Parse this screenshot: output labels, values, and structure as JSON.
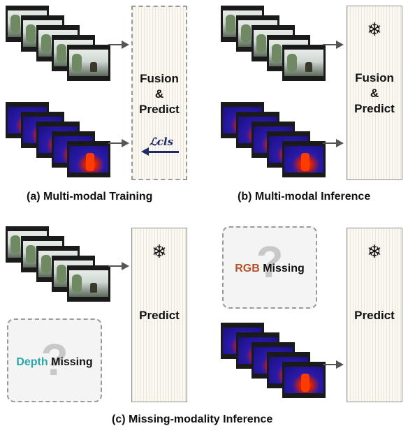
{
  "panels": {
    "a": {
      "box_label_1": "Fusion",
      "box_label_2": "&",
      "box_label_3": "Predict",
      "loss_label": "ℒcls",
      "caption": "(a) Multi-modal Training"
    },
    "b": {
      "snowflake": "❄",
      "box_label_1": "Fusion",
      "box_label_2": "&",
      "box_label_3": "Predict",
      "caption": "(b) Multi-modal Inference"
    },
    "c": {
      "snowflake": "❄",
      "box_label": "Predict",
      "missing_modality": "Depth",
      "missing_word": "Missing",
      "missing_color": "#2aa6a8"
    },
    "d": {
      "snowflake": "❄",
      "box_label": "Predict",
      "missing_modality": "RGB",
      "missing_word": "Missing",
      "missing_color": "#b5502a"
    },
    "caption_cd": "(c) Missing-modality Inference"
  },
  "icons": [
    "film-frame-rgb",
    "film-frame-depth",
    "arrow-right",
    "snowflake-icon",
    "question-mark-icon"
  ]
}
